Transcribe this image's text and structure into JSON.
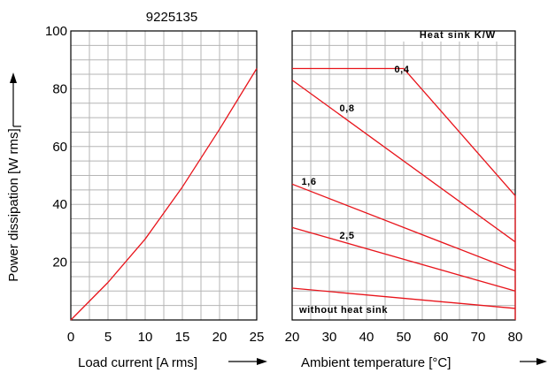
{
  "chart_data": {
    "type": "line",
    "title": "9225135",
    "ylabel": "Power dissipation [W rms]",
    "ylim": [
      0,
      100
    ],
    "yticks": [
      "20",
      "40",
      "60",
      "80",
      "100"
    ],
    "grid": true,
    "line_color": "#e8141b",
    "left_panel": {
      "xlabel": "Load current [A rms]",
      "xlim": [
        0,
        25
      ],
      "xticks": [
        "0",
        "5",
        "10",
        "15",
        "20",
        "25"
      ],
      "series": [
        {
          "x": [
            0,
            5,
            10,
            15,
            20,
            25
          ],
          "y": [
            0,
            13,
            28,
            46,
            66,
            87
          ]
        }
      ]
    },
    "right_panel": {
      "xlabel": "Ambient temperature [°C]",
      "xlim": [
        20,
        80
      ],
      "xticks": [
        "20",
        "30",
        "40",
        "50",
        "60",
        "70",
        "80"
      ],
      "legend_title": "Heat sink K/W",
      "series": [
        {
          "name": "0,4",
          "x": [
            20,
            50,
            80
          ],
          "y": [
            87,
            87,
            43
          ]
        },
        {
          "name": "0,8",
          "x": [
            20,
            80
          ],
          "y": [
            83,
            27
          ]
        },
        {
          "name": "1,6",
          "x": [
            20,
            80
          ],
          "y": [
            47,
            17
          ]
        },
        {
          "name": "2,5",
          "x": [
            20,
            80
          ],
          "y": [
            32,
            10
          ]
        },
        {
          "name": "without heat sink",
          "x": [
            20,
            80
          ],
          "y": [
            11,
            4
          ]
        }
      ],
      "boundary": {
        "x": [
          80,
          80
        ],
        "y": [
          0,
          43
        ]
      }
    }
  }
}
